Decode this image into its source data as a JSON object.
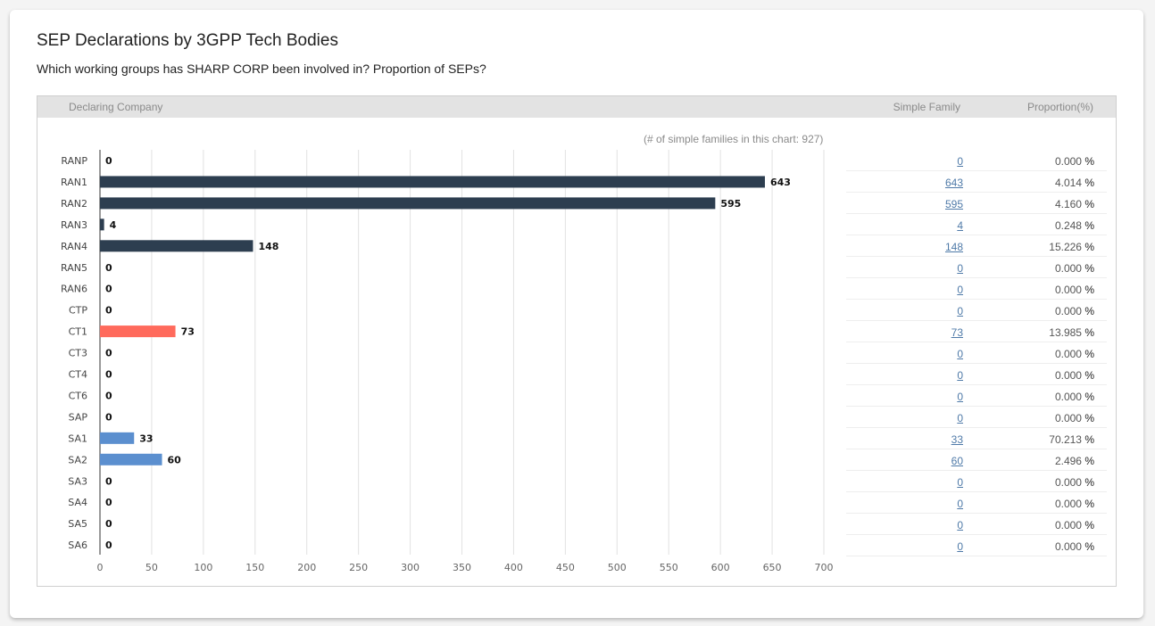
{
  "title": "SEP Declarations by 3GPP Tech Bodies",
  "subtitle": "Which working groups has SHARP CORP been involved in? Proportion of SEPs?",
  "table_header": {
    "company": "Declaring Company",
    "family": "Simple Family",
    "proportion": "Proportion(%)"
  },
  "chart_note": "(# of simple families in this chart: 927)",
  "percent_symbol": "%",
  "colors": {
    "ran": "#2d3e50",
    "ct": "#ff6a5c",
    "sa": "#5b8fcf"
  },
  "chart_data": {
    "type": "bar",
    "orientation": "horizontal",
    "categories": [
      "RANP",
      "RAN1",
      "RAN2",
      "RAN3",
      "RAN4",
      "RAN5",
      "RAN6",
      "CTP",
      "CT1",
      "CT3",
      "CT4",
      "CT6",
      "SAP",
      "SA1",
      "SA2",
      "SA3",
      "SA4",
      "SA5",
      "SA6"
    ],
    "values": [
      0,
      643,
      595,
      4,
      148,
      0,
      0,
      0,
      73,
      0,
      0,
      0,
      0,
      33,
      60,
      0,
      0,
      0,
      0
    ],
    "groups": [
      "ran",
      "ran",
      "ran",
      "ran",
      "ran",
      "ran",
      "ran",
      "ct",
      "ct",
      "ct",
      "ct",
      "ct",
      "sa",
      "sa",
      "sa",
      "sa",
      "sa",
      "sa",
      "sa"
    ],
    "xlim": [
      0,
      700
    ],
    "xticks": [
      0,
      50,
      100,
      150,
      200,
      250,
      300,
      350,
      400,
      450,
      500,
      550,
      600,
      650,
      700
    ],
    "grid": true
  },
  "table_rows": [
    {
      "family": "0",
      "proportion": "0.000"
    },
    {
      "family": "643",
      "proportion": "4.014"
    },
    {
      "family": "595",
      "proportion": "4.160"
    },
    {
      "family": "4",
      "proportion": "0.248"
    },
    {
      "family": "148",
      "proportion": "15.226"
    },
    {
      "family": "0",
      "proportion": "0.000"
    },
    {
      "family": "0",
      "proportion": "0.000"
    },
    {
      "family": "0",
      "proportion": "0.000"
    },
    {
      "family": "73",
      "proportion": "13.985"
    },
    {
      "family": "0",
      "proportion": "0.000"
    },
    {
      "family": "0",
      "proportion": "0.000"
    },
    {
      "family": "0",
      "proportion": "0.000"
    },
    {
      "family": "0",
      "proportion": "0.000"
    },
    {
      "family": "33",
      "proportion": "70.213"
    },
    {
      "family": "60",
      "proportion": "2.496"
    },
    {
      "family": "0",
      "proportion": "0.000"
    },
    {
      "family": "0",
      "proportion": "0.000"
    },
    {
      "family": "0",
      "proportion": "0.000"
    },
    {
      "family": "0",
      "proportion": "0.000"
    }
  ]
}
